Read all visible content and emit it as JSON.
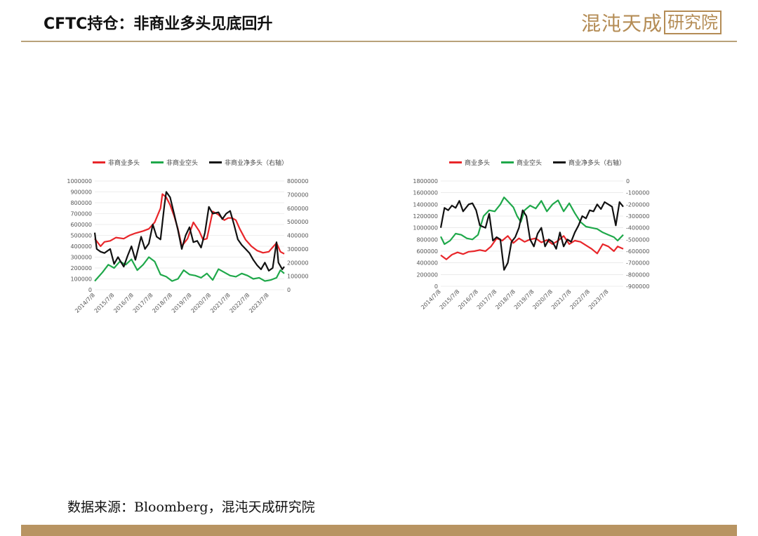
{
  "header": {
    "title": "CFTC持仓：非商业多头见底回升",
    "logo_script": "混沌天成",
    "logo_box": "研究院"
  },
  "colors": {
    "red": "#e8262a",
    "green": "#1fa84a",
    "black": "#111111",
    "gold": "#b89462"
  },
  "source": "数据来源：Bloomberg，混沌天成研究院",
  "chart_data": [
    {
      "type": "line",
      "x_ticks": [
        "2014/7/8",
        "2015/7/8",
        "2016/7/8",
        "2017/7/8",
        "2018/7/8",
        "2019/7/8",
        "2020/7/8",
        "2021/7/8",
        "2022/7/8",
        "2023/7/8"
      ],
      "x_range": [
        2014.5,
        2024.3
      ],
      "y_left_range": [
        0,
        1000000
      ],
      "y_left_ticks": [
        "0",
        "100000",
        "200000",
        "300000",
        "400000",
        "500000",
        "600000",
        "700000",
        "800000",
        "900000",
        "1000000"
      ],
      "y_right_range": [
        0,
        800000
      ],
      "y_right_ticks": [
        "0",
        "100000",
        "200000",
        "300000",
        "400000",
        "500000",
        "600000",
        "700000",
        "800000"
      ],
      "grid": "horizontal",
      "legend_position": "top",
      "series": [
        {
          "name": "非商业多头",
          "axis": "left",
          "color": "#e8262a",
          "x": [
            2014.5,
            2014.8,
            2015.0,
            2015.3,
            2015.6,
            2016.0,
            2016.3,
            2016.6,
            2017.0,
            2017.3,
            2017.6,
            2017.9,
            2018.0,
            2018.2,
            2018.4,
            2018.6,
            2018.8,
            2019.0,
            2019.3,
            2019.6,
            2019.9,
            2020.1,
            2020.3,
            2020.6,
            2020.9,
            2021.2,
            2021.4,
            2021.6,
            2021.8,
            2022.0,
            2022.3,
            2022.6,
            2022.9,
            2023.2,
            2023.5,
            2023.7,
            2023.9,
            2024.1,
            2024.3
          ],
          "y": [
            470000,
            400000,
            440000,
            450000,
            480000,
            470000,
            500000,
            520000,
            540000,
            560000,
            620000,
            750000,
            880000,
            850000,
            780000,
            680000,
            560000,
            400000,
            470000,
            620000,
            540000,
            460000,
            470000,
            720000,
            690000,
            640000,
            660000,
            660000,
            640000,
            560000,
            460000,
            400000,
            360000,
            340000,
            350000,
            390000,
            430000,
            350000,
            330000
          ]
        },
        {
          "name": "非商业空头",
          "axis": "left",
          "color": "#1fa84a",
          "x": [
            2014.5,
            2014.7,
            2014.9,
            2015.2,
            2015.5,
            2015.8,
            2016.1,
            2016.4,
            2016.7,
            2017.0,
            2017.3,
            2017.6,
            2017.9,
            2018.2,
            2018.5,
            2018.8,
            2019.1,
            2019.4,
            2019.7,
            2020.0,
            2020.3,
            2020.6,
            2020.9,
            2021.2,
            2021.5,
            2021.8,
            2022.1,
            2022.4,
            2022.7,
            2023.0,
            2023.3,
            2023.6,
            2023.9,
            2024.1,
            2024.3
          ],
          "y": [
            80000,
            120000,
            160000,
            230000,
            200000,
            260000,
            230000,
            280000,
            180000,
            230000,
            300000,
            260000,
            140000,
            120000,
            80000,
            100000,
            180000,
            140000,
            130000,
            110000,
            150000,
            90000,
            190000,
            160000,
            130000,
            120000,
            150000,
            130000,
            100000,
            110000,
            80000,
            90000,
            110000,
            180000,
            150000
          ]
        },
        {
          "name": "非商业净多头（右轴）",
          "axis": "right",
          "color": "#111111",
          "x": [
            2014.5,
            2014.6,
            2014.8,
            2015.0,
            2015.3,
            2015.5,
            2015.7,
            2016.0,
            2016.2,
            2016.4,
            2016.6,
            2016.9,
            2017.1,
            2017.3,
            2017.5,
            2017.7,
            2017.9,
            2018.1,
            2018.2,
            2018.4,
            2018.6,
            2018.8,
            2019.0,
            2019.2,
            2019.4,
            2019.6,
            2019.8,
            2020.0,
            2020.2,
            2020.4,
            2020.6,
            2020.9,
            2021.1,
            2021.3,
            2021.5,
            2021.7,
            2021.9,
            2022.1,
            2022.3,
            2022.5,
            2022.7,
            2022.9,
            2023.1,
            2023.3,
            2023.5,
            2023.7,
            2023.9,
            2024.0,
            2024.2,
            2024.3
          ],
          "y": [
            420000,
            300000,
            280000,
            270000,
            300000,
            190000,
            240000,
            170000,
            250000,
            320000,
            220000,
            390000,
            300000,
            340000,
            480000,
            390000,
            370000,
            620000,
            720000,
            680000,
            560000,
            440000,
            300000,
            400000,
            460000,
            350000,
            360000,
            310000,
            420000,
            610000,
            560000,
            570000,
            520000,
            560000,
            580000,
            480000,
            370000,
            330000,
            300000,
            270000,
            220000,
            180000,
            150000,
            200000,
            140000,
            160000,
            350000,
            200000,
            150000,
            170000
          ]
        }
      ]
    },
    {
      "type": "line",
      "x_ticks": [
        "2014/7/8",
        "2015/7/8",
        "2016/7/8",
        "2017/7/8",
        "2018/7/8",
        "2019/7/8",
        "2020/7/8",
        "2021/7/8",
        "2022/7/8",
        "2023/7/8"
      ],
      "x_range": [
        2014.5,
        2024.3
      ],
      "y_left_range": [
        0,
        1800000
      ],
      "y_left_ticks": [
        "0",
        "200000",
        "400000",
        "600000",
        "800000",
        "1000000",
        "1200000",
        "1400000",
        "1600000",
        "1800000"
      ],
      "y_right_range": [
        -900000,
        0
      ],
      "y_right_ticks": [
        "-900000",
        "-800000",
        "-700000",
        "-600000",
        "-500000",
        "-400000",
        "-300000",
        "-200000",
        "-100000",
        "0"
      ],
      "grid": "horizontal",
      "legend_position": "top",
      "series": [
        {
          "name": "商业多头",
          "axis": "left",
          "color": "#e8262a",
          "x": [
            2014.5,
            2014.8,
            2015.1,
            2015.4,
            2015.7,
            2016.0,
            2016.3,
            2016.6,
            2016.9,
            2017.2,
            2017.5,
            2017.8,
            2018.1,
            2018.4,
            2018.7,
            2019.0,
            2019.3,
            2019.6,
            2019.9,
            2020.2,
            2020.5,
            2020.8,
            2021.1,
            2021.4,
            2021.7,
            2022.0,
            2022.3,
            2022.6,
            2022.9,
            2023.2,
            2023.5,
            2023.8,
            2024.0,
            2024.3
          ],
          "y": [
            530000,
            460000,
            540000,
            580000,
            550000,
            590000,
            600000,
            620000,
            600000,
            680000,
            820000,
            780000,
            860000,
            740000,
            820000,
            760000,
            800000,
            820000,
            750000,
            790000,
            720000,
            780000,
            860000,
            720000,
            780000,
            760000,
            700000,
            640000,
            560000,
            720000,
            680000,
            600000,
            680000,
            640000
          ]
        },
        {
          "name": "商业空头",
          "axis": "left",
          "color": "#1fa84a",
          "x": [
            2014.5,
            2014.7,
            2015.0,
            2015.3,
            2015.6,
            2015.9,
            2016.2,
            2016.5,
            2016.8,
            2017.1,
            2017.4,
            2017.7,
            2017.9,
            2018.2,
            2018.4,
            2018.6,
            2018.8,
            2019.0,
            2019.3,
            2019.6,
            2019.9,
            2020.2,
            2020.5,
            2020.8,
            2021.1,
            2021.4,
            2021.7,
            2022.0,
            2022.3,
            2022.6,
            2022.9,
            2023.2,
            2023.5,
            2023.8,
            2024.0,
            2024.3
          ],
          "y": [
            850000,
            720000,
            780000,
            900000,
            880000,
            820000,
            800000,
            880000,
            1200000,
            1300000,
            1280000,
            1400000,
            1520000,
            1420000,
            1350000,
            1200000,
            1100000,
            1300000,
            1380000,
            1330000,
            1460000,
            1280000,
            1400000,
            1470000,
            1280000,
            1420000,
            1250000,
            1100000,
            1020000,
            1000000,
            980000,
            920000,
            880000,
            840000,
            780000,
            880000
          ]
        },
        {
          "name": "商业净多头（右轴）",
          "axis": "right",
          "color": "#111111",
          "x": [
            2014.5,
            2014.7,
            2014.9,
            2015.1,
            2015.3,
            2015.5,
            2015.7,
            2016.0,
            2016.2,
            2016.4,
            2016.6,
            2016.9,
            2017.1,
            2017.3,
            2017.5,
            2017.7,
            2017.9,
            2018.1,
            2018.3,
            2018.5,
            2018.7,
            2018.9,
            2019.1,
            2019.3,
            2019.5,
            2019.7,
            2019.9,
            2020.1,
            2020.3,
            2020.5,
            2020.7,
            2020.9,
            2021.1,
            2021.3,
            2021.5,
            2021.7,
            2021.9,
            2022.1,
            2022.3,
            2022.5,
            2022.7,
            2022.9,
            2023.1,
            2023.3,
            2023.5,
            2023.7,
            2023.9,
            2024.0,
            2024.1,
            2024.3
          ],
          "y": [
            -400000,
            -230000,
            -250000,
            -210000,
            -230000,
            -170000,
            -260000,
            -200000,
            -190000,
            -250000,
            -380000,
            -400000,
            -280000,
            -510000,
            -480000,
            -500000,
            -760000,
            -700000,
            -520000,
            -480000,
            -400000,
            -250000,
            -300000,
            -500000,
            -560000,
            -450000,
            -400000,
            -560000,
            -500000,
            -520000,
            -580000,
            -440000,
            -560000,
            -500000,
            -520000,
            -440000,
            -380000,
            -300000,
            -320000,
            -250000,
            -260000,
            -200000,
            -240000,
            -180000,
            -200000,
            -220000,
            -380000,
            -280000,
            -180000,
            -220000
          ]
        }
      ]
    }
  ]
}
